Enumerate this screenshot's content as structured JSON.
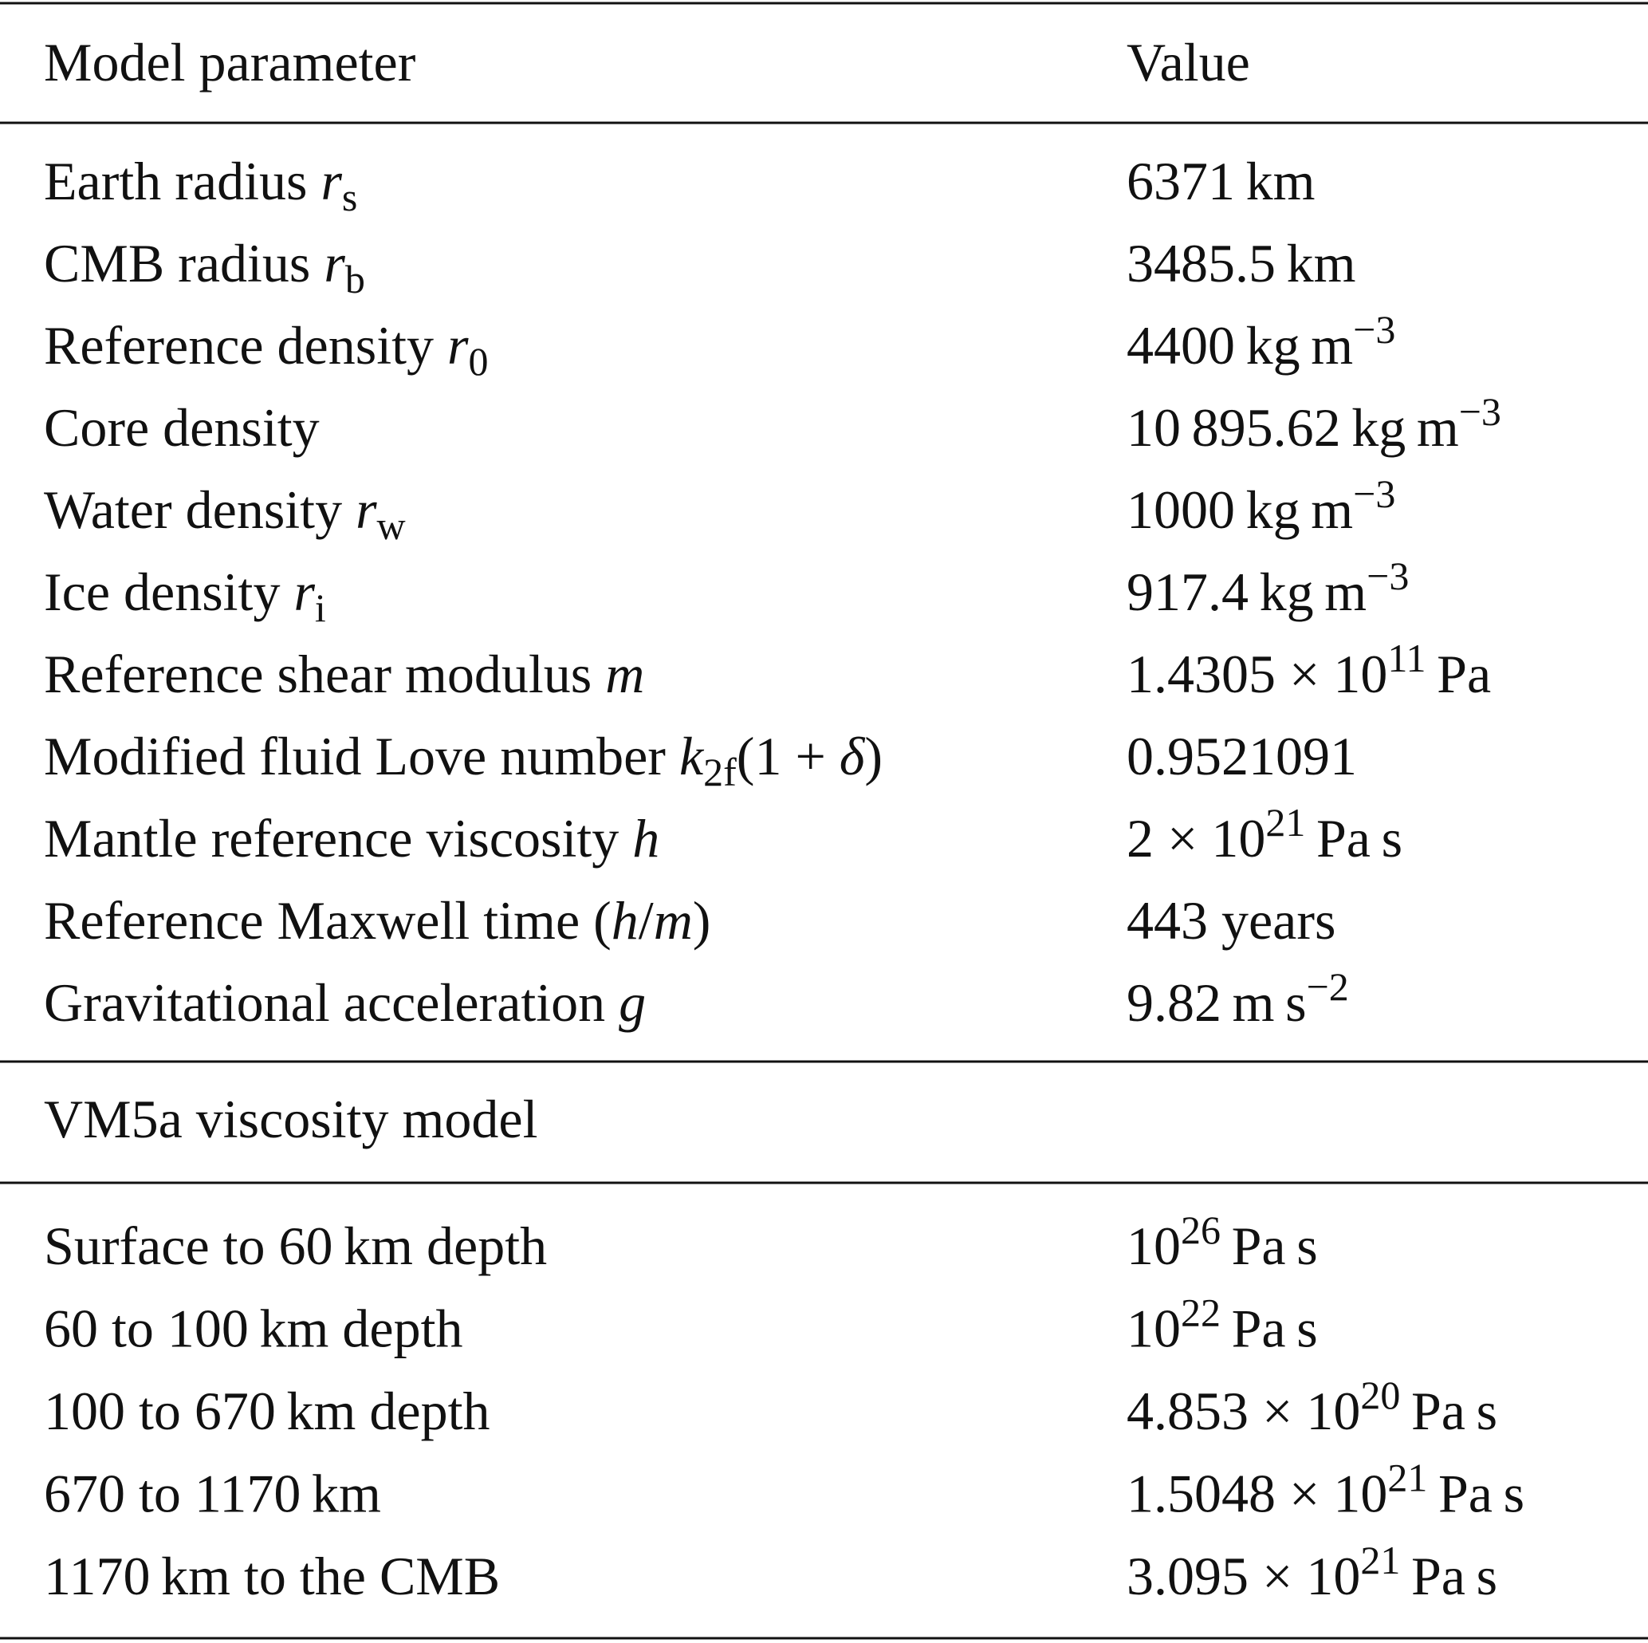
{
  "table": {
    "header": [
      [
        "Model parameter"
      ],
      [
        "Value"
      ]
    ],
    "rows": [
      [
        [
          "Earth radius ",
          {
            "text": "r",
            "style": "italic"
          },
          {
            "text": "s",
            "style": "sub"
          }
        ],
        [
          "6371 km"
        ]
      ],
      [
        [
          "CMB radius ",
          {
            "text": "r",
            "style": "italic"
          },
          {
            "text": "b",
            "style": "sub"
          }
        ],
        [
          "3485.5 km"
        ]
      ],
      [
        [
          "Reference density ",
          {
            "text": "r",
            "style": "italic"
          },
          {
            "text": "0",
            "style": "sub"
          }
        ],
        [
          "4400 kg m",
          {
            "text": "−3",
            "style": "sup"
          }
        ]
      ],
      [
        [
          "Core density"
        ],
        [
          "10 895.62 kg m",
          {
            "text": "−3",
            "style": "sup"
          }
        ]
      ],
      [
        [
          "Water density ",
          {
            "text": "r",
            "style": "italic"
          },
          {
            "text": "w",
            "style": "sub"
          }
        ],
        [
          "1000 kg m",
          {
            "text": "−3",
            "style": "sup"
          }
        ]
      ],
      [
        [
          "Ice density ",
          {
            "text": "r",
            "style": "italic"
          },
          {
            "text": "i",
            "style": "sub"
          }
        ],
        [
          "917.4 kg m",
          {
            "text": "−3",
            "style": "sup"
          }
        ]
      ],
      [
        [
          "Reference shear modulus ",
          {
            "text": "m",
            "style": "italic"
          }
        ],
        [
          "1.4305 × 10",
          {
            "text": "11",
            "style": "sup"
          },
          " Pa"
        ]
      ],
      [
        [
          "Modified fluid Love number ",
          {
            "text": "k",
            "style": "italic"
          },
          {
            "text": "2f",
            "style": "sub"
          },
          "(1 + ",
          {
            "text": "δ",
            "style": "italic"
          },
          ")"
        ],
        [
          "0.9521091"
        ]
      ],
      [
        [
          "Mantle reference viscosity ",
          {
            "text": "h",
            "style": "italic"
          }
        ],
        [
          "2 × 10",
          {
            "text": "21",
            "style": "sup"
          },
          " Pa s"
        ]
      ],
      [
        [
          "Reference Maxwell time (",
          {
            "text": "h",
            "style": "italic"
          },
          "/",
          {
            "text": "m",
            "style": "italic"
          },
          ")"
        ],
        [
          "443 years"
        ]
      ],
      [
        [
          "Gravitational acceleration ",
          {
            "text": "g",
            "style": "italic"
          }
        ],
        [
          "9.82 m s",
          {
            "text": "−2",
            "style": "sup"
          }
        ]
      ]
    ],
    "section": [
      [
        "VM5a viscosity model"
      ]
    ],
    "section_rows": [
      [
        [
          "Surface to 60 km depth"
        ],
        [
          "10",
          {
            "text": "26",
            "style": "sup"
          },
          " Pa s"
        ]
      ],
      [
        [
          "60 to 100 km depth"
        ],
        [
          "10",
          {
            "text": "22",
            "style": "sup"
          },
          " Pa s"
        ]
      ],
      [
        [
          "100 to 670 km depth"
        ],
        [
          "4.853 × 10",
          {
            "text": "20",
            "style": "sup"
          },
          " Pa s"
        ]
      ],
      [
        [
          "670 to 1170 km"
        ],
        [
          "1.5048 × 10",
          {
            "text": "21",
            "style": "sup"
          },
          " Pa s"
        ]
      ],
      [
        [
          "1170 km to the CMB"
        ],
        [
          "3.095 × 10",
          {
            "text": "21",
            "style": "sup"
          },
          " Pa s"
        ]
      ]
    ]
  }
}
